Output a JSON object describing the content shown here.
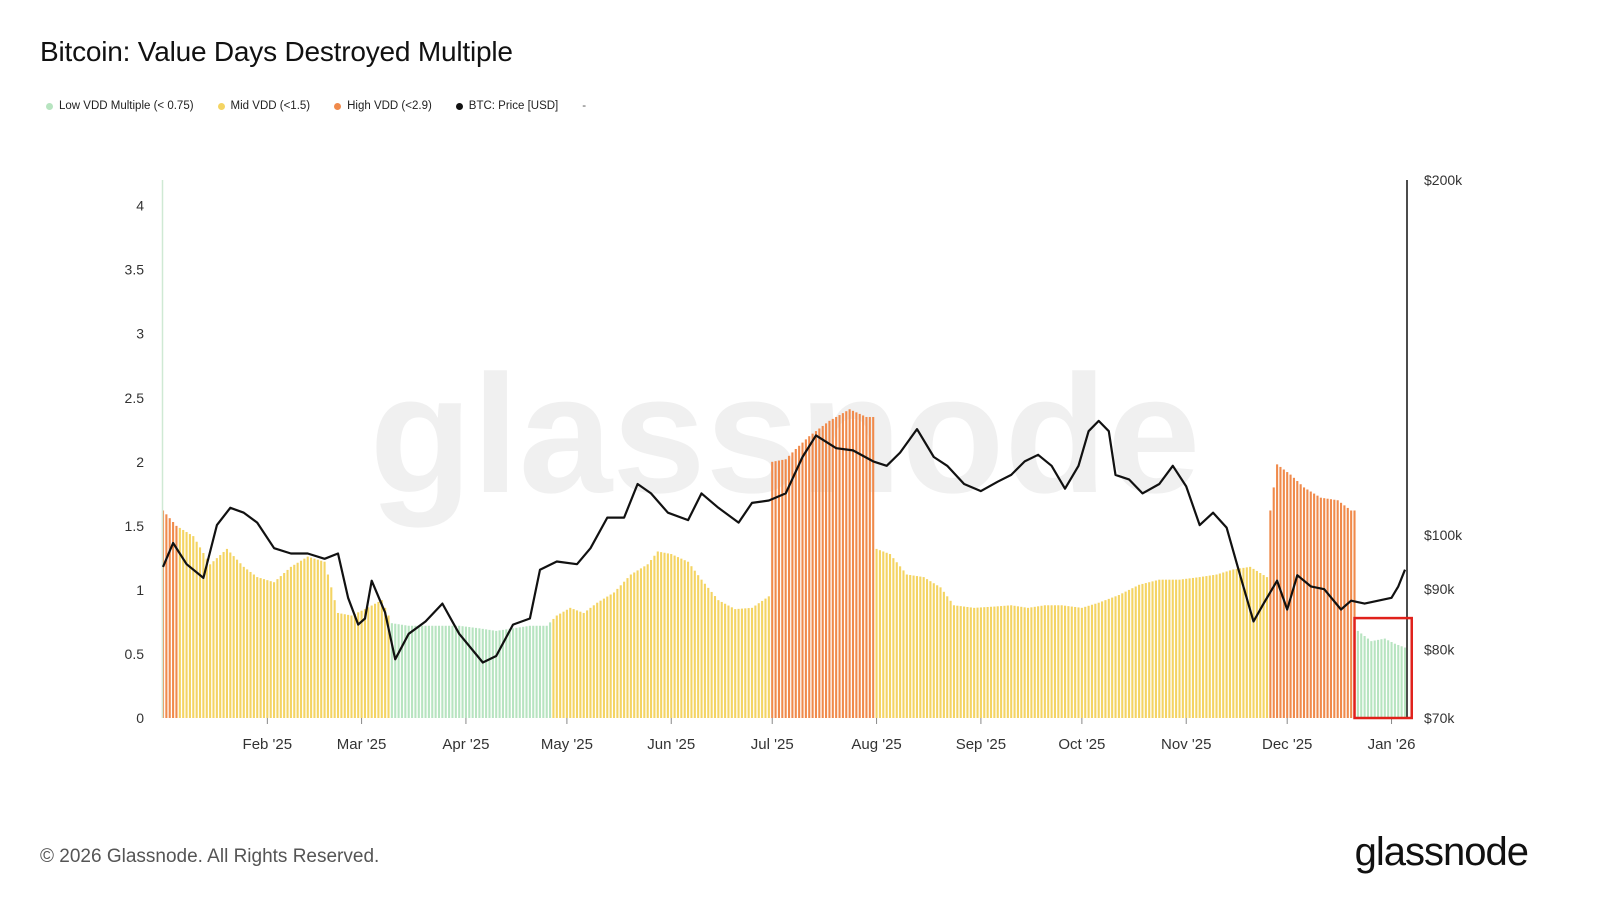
{
  "title": "Bitcoin: Value Days Destroyed Multiple",
  "legend": [
    {
      "label": "Low VDD Multiple (< 0.75)",
      "color": "#b7e4c0"
    },
    {
      "label": "Mid VDD (<1.5)",
      "color": "#f4d463"
    },
    {
      "label": "High VDD (<2.9)",
      "color": "#f08a4b"
    },
    {
      "label": "BTC: Price [USD]",
      "color": "#111111"
    }
  ],
  "legend_extra": "-",
  "watermark": "glassnode",
  "footer": "© 2026 Glassnode. All Rights Reserved.",
  "logo": "glassnode",
  "colors": {
    "low": "#b7e4c0",
    "mid": "#f4d463",
    "high": "#f08a4b",
    "price": "#111111",
    "highlight": "#e0211b"
  },
  "chart_data": {
    "type": "bar",
    "x_start": "2025-01-01",
    "x_end": "2026-01-05",
    "xlabel": "",
    "ylabel": "",
    "x_ticks": [
      "Feb '25",
      "Mar '25",
      "Apr '25",
      "May '25",
      "Jun '25",
      "Jul '25",
      "Aug '25",
      "Sep '25",
      "Oct '25",
      "Nov '25",
      "Dec '25",
      "Jan '26"
    ],
    "x_tick_dates": [
      "2025-02-01",
      "2025-03-01",
      "2025-04-01",
      "2025-05-01",
      "2025-06-01",
      "2025-07-01",
      "2025-08-01",
      "2025-09-01",
      "2025-10-01",
      "2025-11-01",
      "2025-12-01",
      "2026-01-01"
    ],
    "y_left": {
      "ticks": [
        "0",
        "0.5",
        "1",
        "1.5",
        "2",
        "2.5",
        "3",
        "3.5",
        "4"
      ],
      "ylim": [
        0,
        4.2
      ]
    },
    "y_right": {
      "ticks": [
        "$70k",
        "$80k",
        "$90k",
        "$100k",
        "$200k"
      ],
      "tick_values": [
        70000,
        80000,
        90000,
        100000,
        200000
      ],
      "scale": "log",
      "ylim": [
        70000,
        200000
      ]
    },
    "series": [
      {
        "name": "VDD Multiple",
        "type": "bar",
        "colored_by": "threshold",
        "thresholds": {
          "low": 0.75,
          "mid": 1.5,
          "high": 2.9
        },
        "points": [
          [
            "2025-01-01",
            1.62
          ],
          [
            "2025-01-05",
            1.5
          ],
          [
            "2025-01-10",
            1.42
          ],
          [
            "2025-01-15",
            1.2
          ],
          [
            "2025-01-20",
            1.32
          ],
          [
            "2025-01-25",
            1.18
          ],
          [
            "2025-01-29",
            1.1
          ],
          [
            "2025-02-03",
            1.06
          ],
          [
            "2025-02-08",
            1.18
          ],
          [
            "2025-02-13",
            1.26
          ],
          [
            "2025-02-18",
            1.22
          ],
          [
            "2025-02-22",
            0.82
          ],
          [
            "2025-02-26",
            0.8
          ],
          [
            "2025-03-02",
            0.85
          ],
          [
            "2025-03-07",
            0.92
          ],
          [
            "2025-03-10",
            0.74
          ],
          [
            "2025-03-15",
            0.72
          ],
          [
            "2025-03-20",
            0.72
          ],
          [
            "2025-03-25",
            0.72
          ],
          [
            "2025-03-30",
            0.72
          ],
          [
            "2025-04-05",
            0.7
          ],
          [
            "2025-04-10",
            0.68
          ],
          [
            "2025-04-15",
            0.7
          ],
          [
            "2025-04-20",
            0.72
          ],
          [
            "2025-04-25",
            0.72
          ],
          [
            "2025-04-28",
            0.8
          ],
          [
            "2025-05-02",
            0.86
          ],
          [
            "2025-05-06",
            0.82
          ],
          [
            "2025-05-10",
            0.9
          ],
          [
            "2025-05-15",
            0.98
          ],
          [
            "2025-05-20",
            1.12
          ],
          [
            "2025-05-25",
            1.2
          ],
          [
            "2025-05-28",
            1.3
          ],
          [
            "2025-06-01",
            1.28
          ],
          [
            "2025-06-06",
            1.22
          ],
          [
            "2025-06-10",
            1.08
          ],
          [
            "2025-06-15",
            0.92
          ],
          [
            "2025-06-20",
            0.85
          ],
          [
            "2025-06-25",
            0.86
          ],
          [
            "2025-06-30",
            0.95
          ],
          [
            "2025-07-01",
            2.0
          ],
          [
            "2025-07-05",
            2.02
          ],
          [
            "2025-07-08",
            2.1
          ],
          [
            "2025-07-12",
            2.2
          ],
          [
            "2025-07-18",
            2.32
          ],
          [
            "2025-07-24",
            2.41
          ],
          [
            "2025-07-29",
            2.35
          ],
          [
            "2025-08-01",
            1.32
          ],
          [
            "2025-08-05",
            1.28
          ],
          [
            "2025-08-10",
            1.12
          ],
          [
            "2025-08-15",
            1.1
          ],
          [
            "2025-08-20",
            1.02
          ],
          [
            "2025-08-24",
            0.88
          ],
          [
            "2025-08-30",
            0.86
          ],
          [
            "2025-09-05",
            0.87
          ],
          [
            "2025-09-10",
            0.88
          ],
          [
            "2025-09-15",
            0.86
          ],
          [
            "2025-09-20",
            0.88
          ],
          [
            "2025-09-25",
            0.88
          ],
          [
            "2025-10-01",
            0.86
          ],
          [
            "2025-10-06",
            0.9
          ],
          [
            "2025-10-12",
            0.96
          ],
          [
            "2025-10-18",
            1.04
          ],
          [
            "2025-10-24",
            1.08
          ],
          [
            "2025-10-30",
            1.08
          ],
          [
            "2025-11-05",
            1.1
          ],
          [
            "2025-11-10",
            1.12
          ],
          [
            "2025-11-15",
            1.16
          ],
          [
            "2025-11-20",
            1.18
          ],
          [
            "2025-11-25",
            1.1
          ],
          [
            "2025-11-26",
            1.62
          ],
          [
            "2025-11-28",
            1.98
          ],
          [
            "2025-12-02",
            1.9
          ],
          [
            "2025-12-06",
            1.8
          ],
          [
            "2025-12-11",
            1.72
          ],
          [
            "2025-12-16",
            1.7
          ],
          [
            "2025-12-20",
            1.62
          ],
          [
            "2025-12-22",
            0.68
          ],
          [
            "2025-12-26",
            0.6
          ],
          [
            "2025-12-30",
            0.62
          ],
          [
            "2026-01-02",
            0.58
          ],
          [
            "2026-01-05",
            0.55
          ]
        ]
      },
      {
        "name": "BTC: Price [USD]",
        "type": "line",
        "axis": "right",
        "points": [
          [
            "2025-01-01",
            94000
          ],
          [
            "2025-01-04",
            98500
          ],
          [
            "2025-01-08",
            94500
          ],
          [
            "2025-01-13",
            92000
          ],
          [
            "2025-01-17",
            102000
          ],
          [
            "2025-01-21",
            105500
          ],
          [
            "2025-01-25",
            104500
          ],
          [
            "2025-01-29",
            102500
          ],
          [
            "2025-02-03",
            97500
          ],
          [
            "2025-02-08",
            96500
          ],
          [
            "2025-02-13",
            96500
          ],
          [
            "2025-02-18",
            95500
          ],
          [
            "2025-02-22",
            96500
          ],
          [
            "2025-02-25",
            88500
          ],
          [
            "2025-02-28",
            84000
          ],
          [
            "2025-03-02",
            85000
          ],
          [
            "2025-03-04",
            91500
          ],
          [
            "2025-03-08",
            86000
          ],
          [
            "2025-03-11",
            78500
          ],
          [
            "2025-03-15",
            82500
          ],
          [
            "2025-03-20",
            84500
          ],
          [
            "2025-03-25",
            87500
          ],
          [
            "2025-03-30",
            82500
          ],
          [
            "2025-04-06",
            78000
          ],
          [
            "2025-04-10",
            79000
          ],
          [
            "2025-04-15",
            84000
          ],
          [
            "2025-04-20",
            85000
          ],
          [
            "2025-04-23",
            93500
          ],
          [
            "2025-04-28",
            95000
          ],
          [
            "2025-05-04",
            94500
          ],
          [
            "2025-05-08",
            97500
          ],
          [
            "2025-05-13",
            103500
          ],
          [
            "2025-05-18",
            103500
          ],
          [
            "2025-05-22",
            110500
          ],
          [
            "2025-05-26",
            108500
          ],
          [
            "2025-05-31",
            104500
          ],
          [
            "2025-06-06",
            103000
          ],
          [
            "2025-06-10",
            108500
          ],
          [
            "2025-06-15",
            105500
          ],
          [
            "2025-06-21",
            102500
          ],
          [
            "2025-06-25",
            106500
          ],
          [
            "2025-06-30",
            107000
          ],
          [
            "2025-07-05",
            108500
          ],
          [
            "2025-07-10",
            116500
          ],
          [
            "2025-07-14",
            121500
          ],
          [
            "2025-07-20",
            118500
          ],
          [
            "2025-07-25",
            118000
          ],
          [
            "2025-07-31",
            115500
          ],
          [
            "2025-08-04",
            114500
          ],
          [
            "2025-08-08",
            117500
          ],
          [
            "2025-08-13",
            123000
          ],
          [
            "2025-08-18",
            116500
          ],
          [
            "2025-08-22",
            114500
          ],
          [
            "2025-08-27",
            110500
          ],
          [
            "2025-09-01",
            109000
          ],
          [
            "2025-09-06",
            111000
          ],
          [
            "2025-09-10",
            112500
          ],
          [
            "2025-09-14",
            115500
          ],
          [
            "2025-09-18",
            117000
          ],
          [
            "2025-09-22",
            114500
          ],
          [
            "2025-09-26",
            109500
          ],
          [
            "2025-09-30",
            114500
          ],
          [
            "2025-10-03",
            122500
          ],
          [
            "2025-10-06",
            125000
          ],
          [
            "2025-10-09",
            122500
          ],
          [
            "2025-10-11",
            112500
          ],
          [
            "2025-10-15",
            111500
          ],
          [
            "2025-10-19",
            108500
          ],
          [
            "2025-10-24",
            110500
          ],
          [
            "2025-10-28",
            114500
          ],
          [
            "2025-11-01",
            110000
          ],
          [
            "2025-11-05",
            102000
          ],
          [
            "2025-11-09",
            104500
          ],
          [
            "2025-11-13",
            101500
          ],
          [
            "2025-11-17",
            92500
          ],
          [
            "2025-11-21",
            84500
          ],
          [
            "2025-11-24",
            87500
          ],
          [
            "2025-11-28",
            91500
          ],
          [
            "2025-12-01",
            86500
          ],
          [
            "2025-12-04",
            92500
          ],
          [
            "2025-12-08",
            90500
          ],
          [
            "2025-12-12",
            90000
          ],
          [
            "2025-12-17",
            86500
          ],
          [
            "2025-12-20",
            88000
          ],
          [
            "2025-12-24",
            87500
          ],
          [
            "2025-12-28",
            88000
          ],
          [
            "2026-01-01",
            88500
          ],
          [
            "2026-01-03",
            90500
          ],
          [
            "2026-01-05",
            93500
          ]
        ]
      }
    ],
    "legend_position": "top-left",
    "grid": false,
    "annotations": [
      {
        "type": "highlight-box",
        "x_from": "2025-12-21",
        "x_to": "2026-01-07",
        "y_from": 0,
        "y_to": 0.78,
        "color": "#e0211b"
      }
    ]
  }
}
